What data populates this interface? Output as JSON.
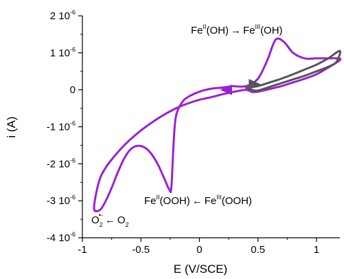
{
  "chart_data": {
    "type": "line",
    "xlabel": "E (V/SCE)",
    "ylabel": "i (A)",
    "xlim": [
      -1,
      1.2
    ],
    "ylim": [
      -4e-06,
      2e-06
    ],
    "x_ticks": [
      {
        "value": -1,
        "label": "-1"
      },
      {
        "value": -0.5,
        "label": "-0.5"
      },
      {
        "value": 0,
        "label": "0"
      },
      {
        "value": 0.5,
        "label": "0.5"
      },
      {
        "value": 1,
        "label": "1"
      }
    ],
    "y_ticks": [
      {
        "value": 2e-06,
        "mant": "2 10",
        "exp": "-6"
      },
      {
        "value": 1e-06,
        "mant": "1 10",
        "exp": "-6"
      },
      {
        "value": 0,
        "mant": "0",
        "exp": ""
      },
      {
        "value": -1e-06,
        "mant": "-1 10",
        "exp": "-6"
      },
      {
        "value": -2e-06,
        "mant": "-2 10",
        "exp": "-6"
      },
      {
        "value": -3e-06,
        "mant": "-3 10",
        "exp": "-6"
      },
      {
        "value": -4e-06,
        "mant": "-4 10",
        "exp": "-6"
      }
    ],
    "grid": false,
    "colors": {
      "wide": "#9b1fd6",
      "narrow": "#555555"
    },
    "series": [
      {
        "key": "wide",
        "x": [
          0.28,
          0.4,
          0.5,
          0.58,
          0.65,
          0.72,
          0.8,
          0.9,
          1.0,
          1.1,
          1.18,
          1.2,
          1.1,
          1.0,
          0.9,
          0.8,
          0.7,
          0.6,
          0.5,
          0.45,
          0.4,
          0.3,
          0.2,
          0.1,
          0.0,
          -0.1,
          -0.2,
          -0.3,
          -0.4,
          -0.5,
          -0.6,
          -0.7,
          -0.8,
          -0.86,
          -0.9,
          -0.85,
          -0.8,
          -0.75,
          -0.7,
          -0.65,
          -0.6,
          -0.55,
          -0.5,
          -0.45,
          -0.4,
          -0.35,
          -0.3,
          -0.26,
          -0.24,
          -0.22,
          -0.2,
          -0.15,
          -0.1,
          0.0,
          0.1,
          0.2,
          0.28
        ],
        "y": [
          1e-07,
          1e-07,
          3e-07,
          8e-07,
          1.35e-06,
          1.3e-06,
          1e-06,
          8.5e-07,
          8.5e-07,
          8.5e-07,
          8.5e-07,
          8e-07,
          6e-07,
          4.2e-07,
          3e-07,
          2e-07,
          1e-07,
          2e-08,
          -5e-08,
          -6e-08,
          0.0,
          -5e-08,
          -1.2e-07,
          -2e-07,
          -2.7e-07,
          -3.7e-07,
          -5e-07,
          -6.7e-07,
          -8.7e-07,
          -1.1e-06,
          -1.37e-06,
          -1.7e-06,
          -2.1e-06,
          -2.5e-06,
          -3.2e-06,
          -3.25e-06,
          -3e-06,
          -2.65e-06,
          -2.25e-06,
          -1.9e-06,
          -1.65e-06,
          -1.53e-06,
          -1.52e-06,
          -1.6e-06,
          -1.78e-06,
          -2.05e-06,
          -2.4e-06,
          -2.68e-06,
          -2.65e-06,
          -1.4e-06,
          -7e-07,
          -3.5e-07,
          -2e-07,
          -5e-08,
          3e-08,
          6e-08,
          1e-07
        ]
      },
      {
        "key": "narrow",
        "x": [
          0.4,
          0.5,
          0.6,
          0.7,
          0.8,
          0.9,
          1.0,
          1.1,
          1.2,
          1.17,
          1.1,
          1.0,
          0.9,
          0.8,
          0.7,
          0.6,
          0.5,
          0.45,
          0.4
        ],
        "y": [
          5e-08,
          1e-07,
          2e-07,
          3e-07,
          4.2e-07,
          5.5e-07,
          6.8e-07,
          8.5e-07,
          1.05e-06,
          7.5e-07,
          6.2e-07,
          5e-07,
          3.8e-07,
          2.8e-07,
          1.8e-07,
          8e-08,
          -2e-08,
          0.0,
          5e-08
        ]
      }
    ],
    "arrows": [
      {
        "key": "narrow",
        "x": 0.46,
        "y": 1.5e-07,
        "direction": "right"
      },
      {
        "key": "wide",
        "x": 0.24,
        "y": 0.0,
        "direction": "left"
      }
    ],
    "annotations": {
      "ox": {
        "pre": "Fe",
        "sup1": "II",
        "mid": "(OH)",
        "arrow": "→",
        "pre2": "Fe",
        "sup2": "III",
        "post": "(OH)"
      },
      "red": {
        "pre": "Fe",
        "sup1": "II",
        "mid": "(OOH)",
        "arrow": "←",
        "pre2": "Fe",
        "sup2": "III",
        "post": "(OOH)"
      },
      "o2": {
        "base": "O",
        "sub": "2",
        "sup": "•-",
        "arrow": "←",
        "o2": "O",
        "sub2": "2"
      }
    }
  }
}
